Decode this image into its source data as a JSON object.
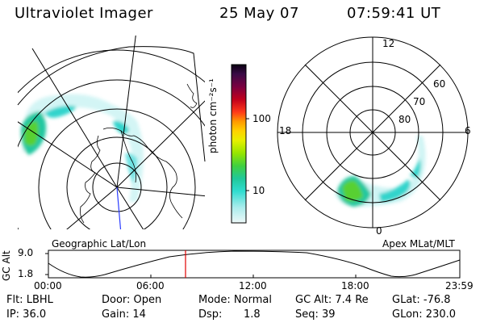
{
  "header": {
    "instrument": "Ultraviolet Imager",
    "date": "25 May 07",
    "time": "07:59:41 UT"
  },
  "left_map": {
    "caption": "Geographic Lat/Lon"
  },
  "colorbar": {
    "unit_label": "photon cm⁻²s⁻¹",
    "ticks": [
      "100",
      "10"
    ],
    "colors": [
      "#000000",
      "#2a0a3a",
      "#4b0050",
      "#7a0040",
      "#b0001a",
      "#e0102a",
      "#ff5010",
      "#ff9a00",
      "#ffd000",
      "#e8f000",
      "#a8e800",
      "#5adc20",
      "#20c878",
      "#20dcc8",
      "#70e8e8",
      "#c8f4f4",
      "#e8f8f8"
    ]
  },
  "right_map": {
    "caption": "Apex MLat/MLT",
    "mlt_labels": [
      "12",
      "18",
      "6",
      "0"
    ],
    "lat_labels": [
      "60",
      "70",
      "80"
    ]
  },
  "altitude_plot": {
    "ylabel": "GC Alt",
    "y_ticks": [
      "9.0",
      "1.8"
    ],
    "x_ticks": [
      "00:00",
      "06:00",
      "12:00",
      "18:00",
      "23:59"
    ],
    "current_time_fraction": 0.3333,
    "marker_color": "#e00000"
  },
  "info": {
    "flt": "Flt: LBHL",
    "ip": "IP: 36.0",
    "door": "Door: Open",
    "gain": "Gain: 14",
    "mode": "Mode: Normal",
    "dsp_label": "Dsp:",
    "dsp_value": "1.8",
    "gc_alt": "GC Alt: 7.4 Re",
    "seq": "Seq: 39",
    "glat": "GLat: -76.8",
    "glon": "GLon: 230.0"
  }
}
